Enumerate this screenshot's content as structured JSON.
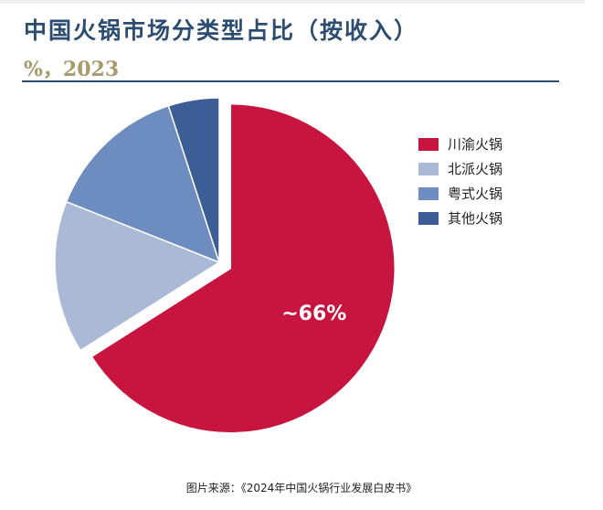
{
  "chart_data": {
    "type": "pie",
    "title": "中国火锅市场分类型占比（按收入）",
    "subtitle": "%，2023",
    "categories": [
      "川渝火锅",
      "北派火锅",
      "粤式火锅",
      "其他火锅"
    ],
    "values": [
      66,
      15,
      14,
      5
    ],
    "colors": [
      "#c8153f",
      "#a9b9d6",
      "#6d8cc0",
      "#3c5d95"
    ],
    "data_labels": [
      "~66%",
      "",
      "",
      ""
    ],
    "exploded": [
      true,
      false,
      false,
      false
    ],
    "legend_position": "right"
  },
  "caption": "图片来源：《2024年中国火锅行业发展白皮书》"
}
